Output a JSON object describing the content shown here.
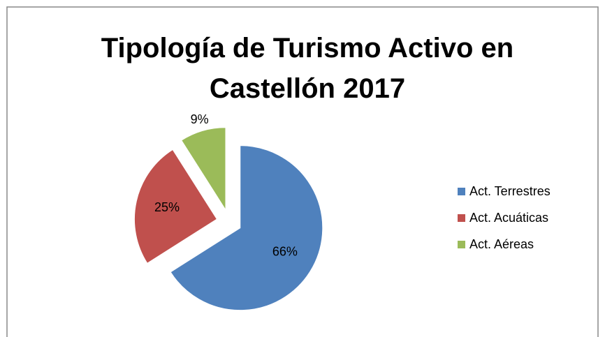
{
  "chart_data": {
    "type": "pie",
    "title": "Tipología de Turismo Activo en Castellón 2017",
    "categories": [
      "Act. Terrestres",
      "Act. Acuáticas",
      "Act. Aéreas"
    ],
    "values": [
      66,
      25,
      9
    ],
    "value_labels": [
      "66%",
      "25%",
      "9%"
    ],
    "colors": [
      "#4f81bd",
      "#c0504d",
      "#9bbb59"
    ],
    "legend": "right"
  }
}
